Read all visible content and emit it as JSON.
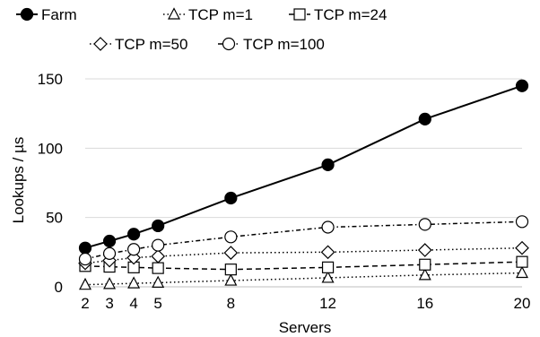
{
  "chart_data": {
    "type": "line",
    "xlabel": "Servers",
    "ylabel": "Lookups / µs",
    "x": [
      2,
      3,
      4,
      5,
      8,
      12,
      16,
      20
    ],
    "xticks": [
      "2",
      "3",
      "4",
      "5",
      "8",
      "12",
      "16",
      "20"
    ],
    "ylim": [
      0,
      150
    ],
    "yticks": [
      "0",
      "50",
      "100",
      "150"
    ],
    "grid": "horizontal",
    "legend_position": "top",
    "series": [
      {
        "name": "Farm",
        "marker": "circle-filled",
        "dash": "solid",
        "values": [
          28,
          33,
          38,
          44,
          64,
          88,
          121,
          145
        ]
      },
      {
        "name": "TCP m=1",
        "marker": "triangle",
        "dash": "dotted",
        "values": [
          1.5,
          2,
          2.5,
          3,
          4.5,
          6.5,
          8.5,
          10
        ]
      },
      {
        "name": "TCP m=24",
        "marker": "square",
        "dash": "dashed",
        "values": [
          15,
          14.5,
          14,
          13.5,
          12.5,
          14,
          16,
          18
        ]
      },
      {
        "name": "TCP m=50",
        "marker": "diamond",
        "dash": "dotted",
        "values": [
          17,
          19,
          21,
          22,
          24.5,
          25,
          26.5,
          28
        ]
      },
      {
        "name": "TCP m=100",
        "marker": "circle-open",
        "dash": "dashdot",
        "values": [
          20,
          24,
          27,
          30,
          36,
          43,
          45,
          47
        ]
      }
    ]
  }
}
